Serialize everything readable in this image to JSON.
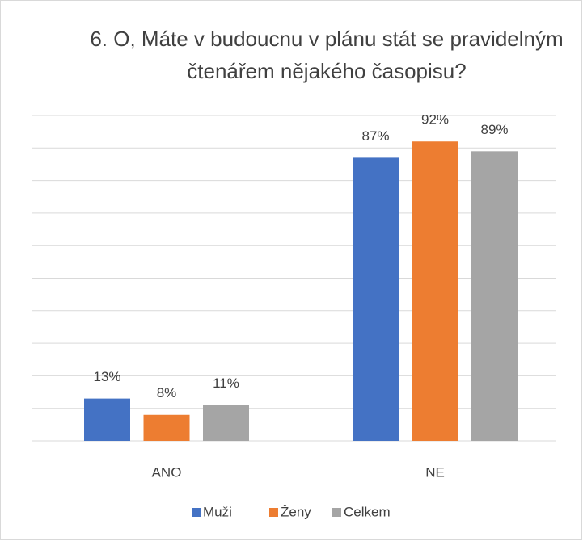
{
  "chart_data": {
    "type": "bar",
    "title": "6. O, Máte v budoucnu v plánu stát se pravidelným čtenářem nějakého časopisu?",
    "categories": [
      "ANO",
      "NE"
    ],
    "series": [
      {
        "name": "Muži",
        "color": "#4472c4",
        "values": [
          13,
          87
        ],
        "value_labels": [
          "13%",
          "87%"
        ]
      },
      {
        "name": "Ženy",
        "color": "#ed7d31",
        "values": [
          8,
          92
        ],
        "value_labels": [
          "8%",
          "92%"
        ]
      },
      {
        "name": "Celkem",
        "color": "#a5a5a5",
        "values": [
          11,
          89
        ],
        "value_labels": [
          "11%",
          "89%"
        ]
      }
    ],
    "ylim": [
      0,
      100
    ],
    "yticks": [
      0,
      10,
      20,
      30,
      40,
      50,
      60,
      70,
      80,
      90,
      100
    ],
    "grid": true,
    "legend": "bottom"
  }
}
